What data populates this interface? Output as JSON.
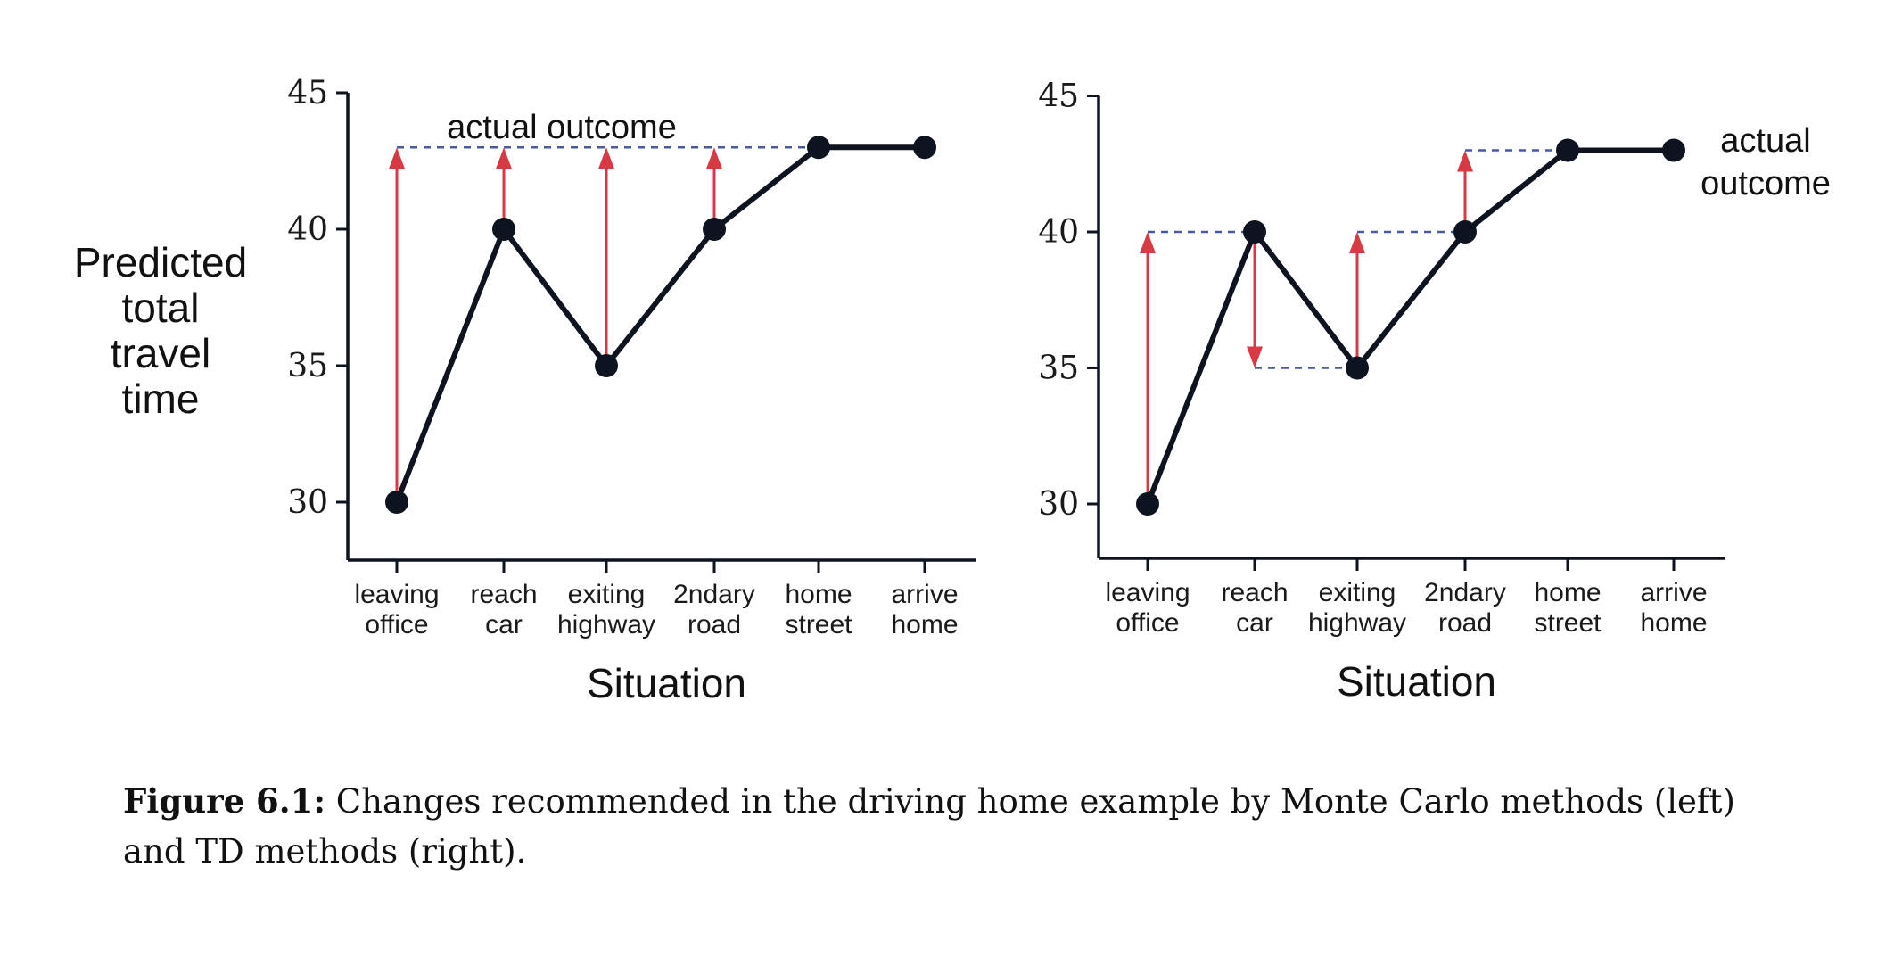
{
  "chart_data": [
    {
      "type": "line",
      "panel": "left",
      "categories": [
        "leaving\noffice",
        "reach\ncar",
        "exiting\nhighway",
        "2ndary\nroad",
        "home\nstreet",
        "arrive\nhome"
      ],
      "series": [
        {
          "values": [
            30,
            40,
            35,
            40,
            43,
            43
          ]
        }
      ],
      "actual_outcome": 43,
      "arrows": [
        {
          "from_index": 0,
          "from": 30,
          "to": 43
        },
        {
          "from_index": 1,
          "from": 40,
          "to": 43
        },
        {
          "from_index": 2,
          "from": 35,
          "to": 43
        },
        {
          "from_index": 3,
          "from": 40,
          "to": 43
        }
      ],
      "annotation": "actual outcome",
      "xlabel": "Situation",
      "ylabel": "Predicted\ntotal\ntravel\ntime",
      "yticks": [
        30,
        35,
        40,
        45
      ],
      "ylim": [
        28,
        45
      ]
    },
    {
      "type": "line",
      "panel": "right",
      "categories": [
        "leaving\noffice",
        "reach\ncar",
        "exiting\nhighway",
        "2ndary\nroad",
        "home\nstreet",
        "arrive\nhome"
      ],
      "series": [
        {
          "values": [
            30,
            40,
            35,
            40,
            43,
            43
          ]
        }
      ],
      "arrows": [
        {
          "from_index": 0,
          "from": 30,
          "to": 40
        },
        {
          "from_index": 1,
          "from": 40,
          "to": 35
        },
        {
          "from_index": 2,
          "from": 35,
          "to": 40
        },
        {
          "from_index": 3,
          "from": 40,
          "to": 43
        }
      ],
      "annotation": "actual\noutcome",
      "xlabel": "Situation",
      "ylabel": "",
      "yticks": [
        30,
        35,
        40,
        45
      ],
      "ylim": [
        28,
        45
      ]
    }
  ],
  "caption": {
    "label": "Figure 6.1:",
    "text": " Changes recommended in the driving home example by Monte Carlo methods (left) and TD methods (right)."
  },
  "colors": {
    "line": "#0d1420",
    "arrow": "#d83a44",
    "dashed": "#4a5aa0"
  }
}
